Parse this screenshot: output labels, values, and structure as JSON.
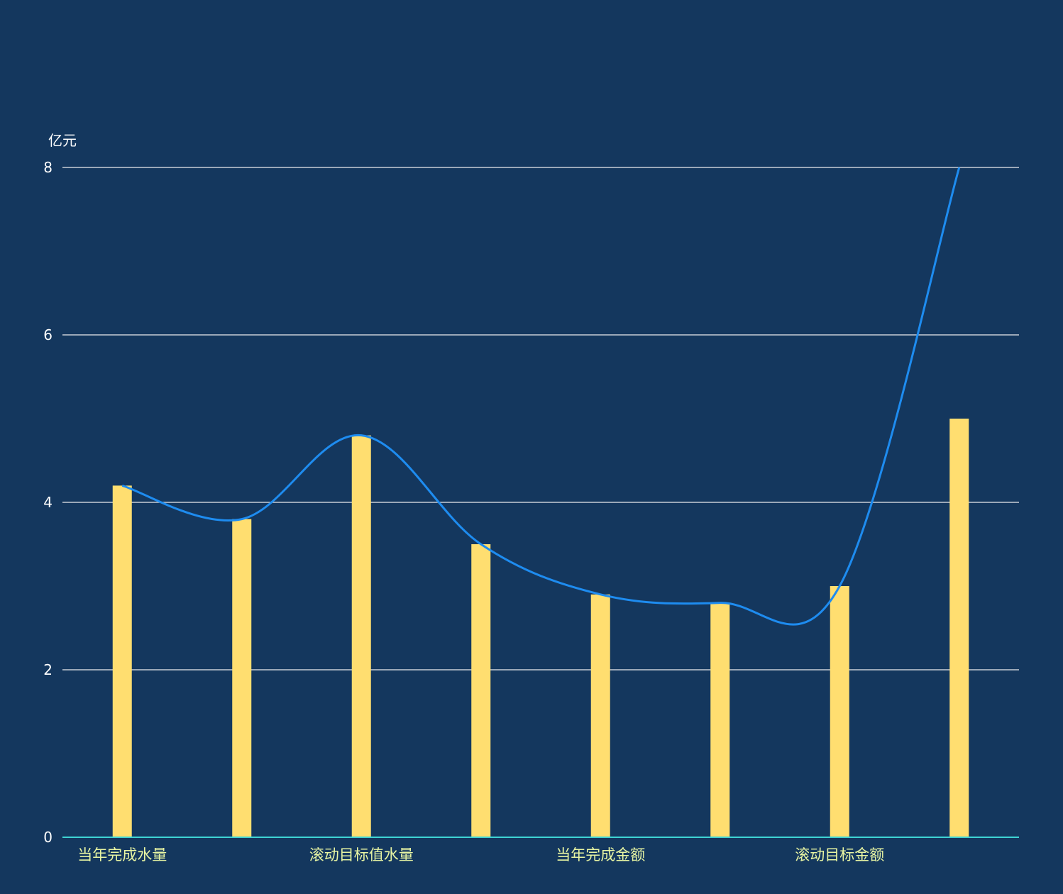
{
  "chart_data": {
    "type": "bar",
    "y_unit": "亿元",
    "ylim": [
      0,
      8
    ],
    "y_ticks": [
      0,
      2,
      4,
      6,
      8
    ],
    "categories": [
      "当年完成水量",
      "",
      "滚动目标值水量",
      "",
      "当年完成金额",
      "",
      "滚动目标金额",
      ""
    ],
    "x_tick_labels": [
      "当年完成水量",
      "滚动目标值水量",
      "当年完成金额",
      "滚动目标金额"
    ],
    "series": [
      {
        "type": "bar",
        "values": [
          4.2,
          3.8,
          4.8,
          3.5,
          2.9,
          2.8,
          3.0,
          5.0
        ]
      },
      {
        "type": "line",
        "smooth": true,
        "values": [
          4.2,
          3.8,
          4.8,
          3.5,
          2.9,
          2.8,
          3.0,
          8.0
        ]
      }
    ],
    "colors": {
      "background": "#14375e",
      "bar": "#ffde70",
      "line": "#1e8cf0",
      "grid": "#c8ced6",
      "x_axis": "#3fd3d3",
      "x_tick_text": "#e8f5a3",
      "y_tick_text": "#ffffff"
    },
    "grid": true
  }
}
